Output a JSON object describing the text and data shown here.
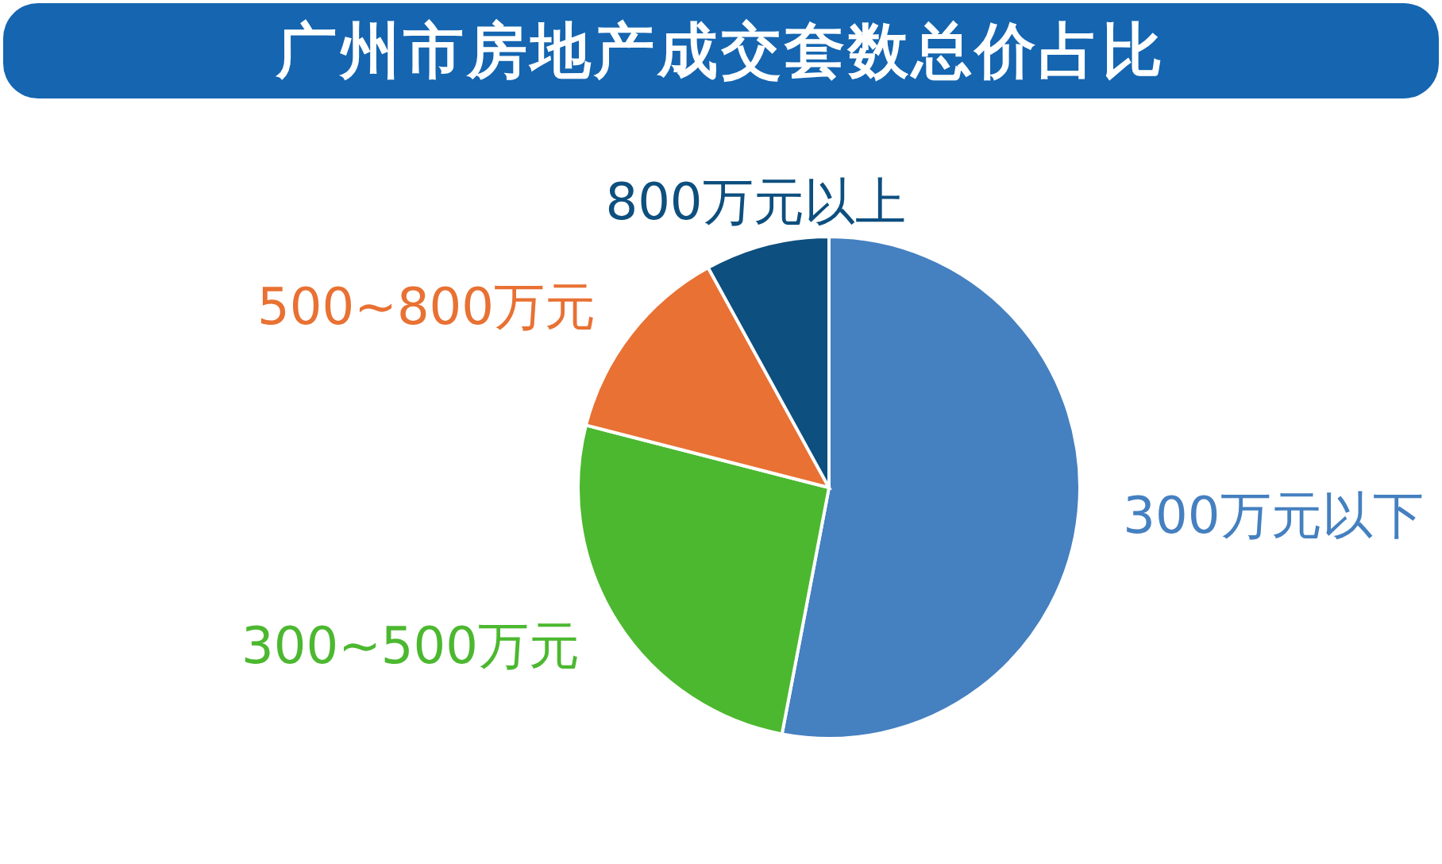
{
  "chart_data": {
    "type": "pie",
    "title": "广州市房地产成交套数总价占比",
    "categories": [
      "300万元以下",
      "300~500万元",
      "500~800万元",
      "800万元以上"
    ],
    "values": [
      53,
      26,
      13,
      8
    ],
    "colors": [
      "#4580c0",
      "#4cb830",
      "#e87133",
      "#0d4f7e"
    ]
  }
}
